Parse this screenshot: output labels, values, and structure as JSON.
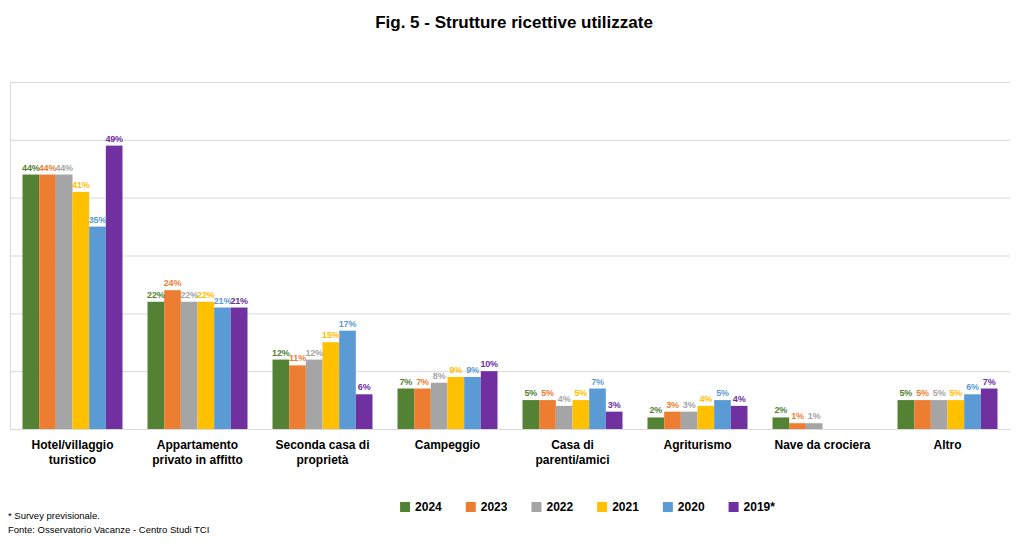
{
  "chart_data": {
    "type": "bar",
    "title": "Fig. 5 - Strutture ricettive utilizzate",
    "categories": [
      "Hotel/villaggio turistico",
      "Appartamento privato in affitto",
      "Seconda casa di proprietà",
      "Campeggio",
      "Casa di parenti/amici",
      "Agriturismo",
      "Nave da crociera",
      "Altro"
    ],
    "series": [
      {
        "name": "2024",
        "color": "#548235",
        "values": [
          44,
          22,
          12,
          7,
          5,
          2,
          2,
          5
        ],
        "value_labels": [
          "44%",
          "22%",
          "12%",
          "7%",
          "5%",
          "2%",
          "2%",
          "5%"
        ]
      },
      {
        "name": "2023",
        "color": "#ed7d31",
        "values": [
          44,
          24,
          11,
          7,
          5,
          3,
          1,
          5
        ],
        "value_labels": [
          "44%",
          "24%",
          "11%",
          "7%",
          "5%",
          "3%",
          "1%",
          "5%"
        ]
      },
      {
        "name": "2022",
        "color": "#a5a5a5",
        "values": [
          44,
          22,
          12,
          8,
          4,
          3,
          1,
          5
        ],
        "value_labels": [
          "44%",
          "22%",
          "12%",
          "8%",
          "4%",
          "3%",
          "1%",
          "5%"
        ]
      },
      {
        "name": "2021",
        "color": "#ffc000",
        "values": [
          41,
          22,
          15,
          9,
          5,
          4,
          null,
          5
        ],
        "value_labels": [
          "41%",
          "22%",
          "15%",
          "9%",
          "5%",
          "4%",
          null,
          "5%"
        ]
      },
      {
        "name": "2020",
        "color": "#5b9bd5",
        "values": [
          35,
          21,
          17,
          9,
          7,
          5,
          null,
          6
        ],
        "value_labels": [
          "35%",
          "21%",
          "17%",
          "9%",
          "7%",
          "5%",
          null,
          "6%"
        ]
      },
      {
        "name": "2019*",
        "color": "#7030a0",
        "values": [
          49,
          21,
          6,
          10,
          3,
          4,
          null,
          7
        ],
        "value_labels": [
          "49%",
          "21%",
          "6%",
          "10%",
          "3%",
          "4%",
          null,
          "7%"
        ]
      }
    ],
    "ylim": [
      0,
      60
    ],
    "yticks": [
      0,
      10,
      20,
      30,
      40,
      50,
      60
    ],
    "grid": true,
    "tick_labels": "x",
    "data_labels": true,
    "legend": "bottom",
    "annotations": [
      "* Survey previsionale.",
      "Fonte: Osservatorio Vacanze - Centro Studi TCI"
    ]
  }
}
